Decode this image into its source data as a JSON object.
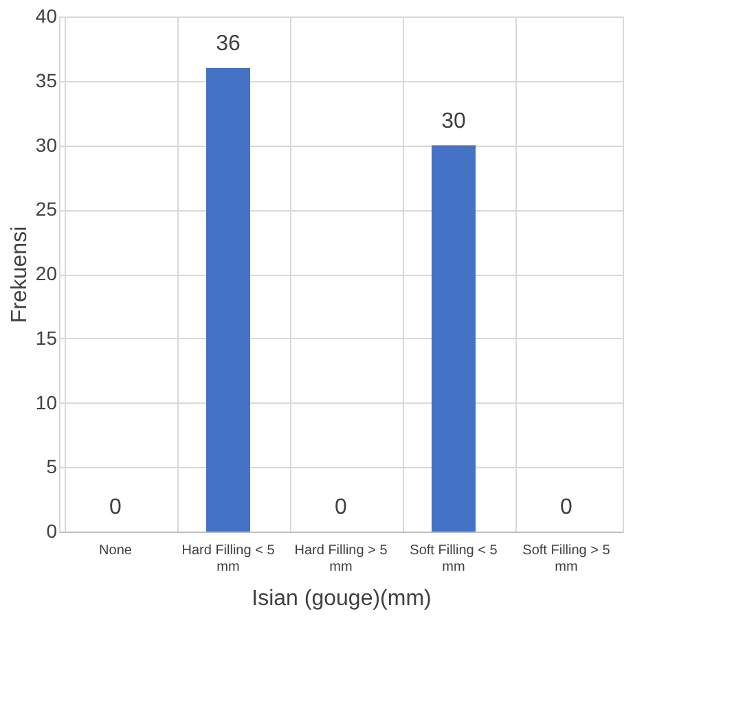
{
  "chart_data": {
    "type": "bar",
    "xlabel": "Isian (gouge)(mm)",
    "ylabel": "Frekuensi",
    "categories": [
      "None",
      "Hard Filling < 5 mm",
      "Hard Filling > 5 mm",
      "Soft Filling < 5 mm",
      "Soft Filling > 5 mm"
    ],
    "values": [
      0,
      36,
      0,
      30,
      0
    ],
    "color": "#4472c4",
    "ylim": [
      0,
      40
    ],
    "yticks": [
      0,
      5,
      10,
      15,
      20,
      25,
      30,
      35,
      40
    ],
    "grid": true,
    "data_labels": true
  }
}
